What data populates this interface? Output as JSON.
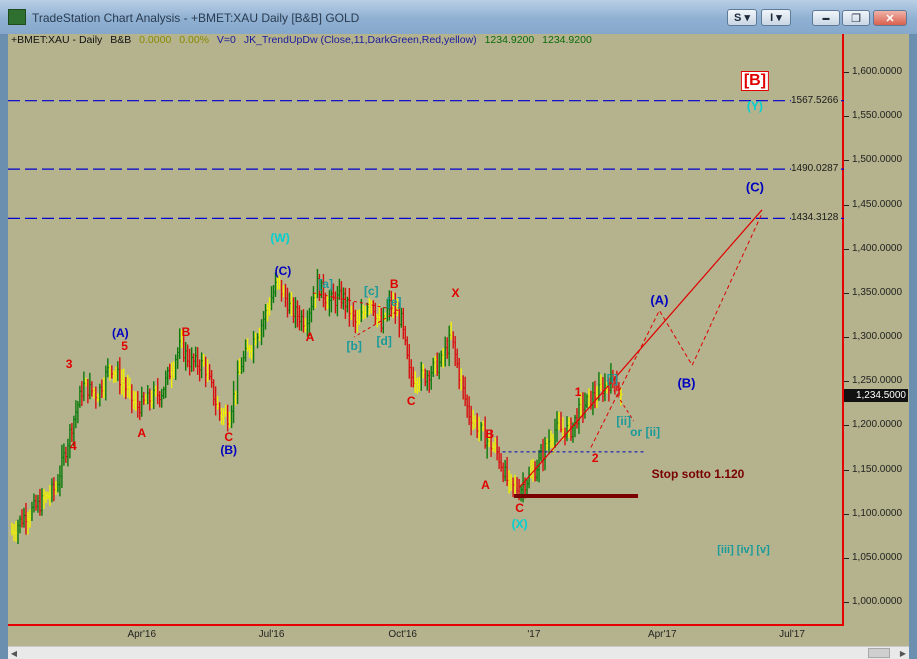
{
  "window": {
    "title": "TradeStation Chart Analysis - +BMET:XAU Daily [B&B] GOLD",
    "s_button": "S",
    "i_button": "I",
    "minimize_label": "▬",
    "restore_label": "❐",
    "close_label": "✕"
  },
  "status_line": {
    "symbol": "+BMET:XAU - Daily",
    "style": "B&B",
    "change": "0.0000",
    "change_pct": "0.00%",
    "volume": "V=0",
    "indicator": "JK_TrendUpDw (Close,11,DarkGreen,Red,yellow)",
    "value1": "1234.9200",
    "value2": "1234.9200"
  },
  "last_price": "1,234.5000",
  "levels": [
    {
      "label": "1567.5266",
      "value": 1567.5266
    },
    {
      "label": "1490.0287",
      "value": 1490.0287
    },
    {
      "label": "1434.3128",
      "value": 1434.3128
    }
  ],
  "stop_label": "Stop sotto 1.120",
  "colors": {
    "background": "#b4b38d",
    "up_bar": "#0a7a0a",
    "down_bar": "#d81010",
    "neutral_bar": "#f0f000",
    "level_line": "#0000d0",
    "stop_line": "#7a0000"
  },
  "chart_data": {
    "type": "bar",
    "x_axis_labels": [
      "Apr'16",
      "Jul'16",
      "Oct'16",
      "'17",
      "Apr'17",
      "Jul'17"
    ],
    "ylim": [
      950,
      1650
    ],
    "y_ticks": [
      "1,600.0000",
      "1,550.0000",
      "1,500.0000",
      "1,450.0000",
      "1,400.0000",
      "1,350.0000",
      "1,300.0000",
      "1,250.0000",
      "1,200.0000",
      "1,150.0000",
      "1,100.0000",
      "1,050.0000",
      "1,000.0000"
    ],
    "y_tick_values": [
      1600,
      1550,
      1500,
      1450,
      1400,
      1350,
      1300,
      1250,
      1200,
      1150,
      1100,
      1050,
      1000
    ],
    "close_path": [
      {
        "d": "2016-01-01",
        "v": 1080
      },
      {
        "d": "2016-01-10",
        "v": 1098
      },
      {
        "d": "2016-01-20",
        "v": 1110
      },
      {
        "d": "2016-02-01",
        "v": 1130
      },
      {
        "d": "2016-02-12",
        "v": 1200
      },
      {
        "d": "2016-02-20",
        "v": 1245
      },
      {
        "d": "2016-03-01",
        "v": 1235
      },
      {
        "d": "2016-03-10",
        "v": 1268
      },
      {
        "d": "2016-03-20",
        "v": 1245
      },
      {
        "d": "2016-03-28",
        "v": 1220
      },
      {
        "d": "2016-04-05",
        "v": 1228
      },
      {
        "d": "2016-04-15",
        "v": 1238
      },
      {
        "d": "2016-04-28",
        "v": 1290
      },
      {
        "d": "2016-05-05",
        "v": 1272
      },
      {
        "d": "2016-05-15",
        "v": 1268
      },
      {
        "d": "2016-05-25",
        "v": 1215
      },
      {
        "d": "2016-06-01",
        "v": 1210
      },
      {
        "d": "2016-06-10",
        "v": 1270
      },
      {
        "d": "2016-06-24",
        "v": 1315
      },
      {
        "d": "2016-07-05",
        "v": 1362
      },
      {
        "d": "2016-07-15",
        "v": 1330
      },
      {
        "d": "2016-07-25",
        "v": 1318
      },
      {
        "d": "2016-08-02",
        "v": 1360
      },
      {
        "d": "2016-08-10",
        "v": 1340
      },
      {
        "d": "2016-08-20",
        "v": 1345
      },
      {
        "d": "2016-08-30",
        "v": 1312
      },
      {
        "d": "2016-09-08",
        "v": 1345
      },
      {
        "d": "2016-09-16",
        "v": 1310
      },
      {
        "d": "2016-09-22",
        "v": 1338
      },
      {
        "d": "2016-09-30",
        "v": 1318
      },
      {
        "d": "2016-10-06",
        "v": 1255
      },
      {
        "d": "2016-10-16",
        "v": 1255
      },
      {
        "d": "2016-10-28",
        "v": 1272
      },
      {
        "d": "2016-11-04",
        "v": 1300
      },
      {
        "d": "2016-11-10",
        "v": 1255
      },
      {
        "d": "2016-11-16",
        "v": 1215
      },
      {
        "d": "2016-11-28",
        "v": 1185
      },
      {
        "d": "2016-12-06",
        "v": 1170
      },
      {
        "d": "2016-12-15",
        "v": 1130
      },
      {
        "d": "2016-12-22",
        "v": 1128
      },
      {
        "d": "2017-01-02",
        "v": 1150
      },
      {
        "d": "2017-01-15",
        "v": 1195
      },
      {
        "d": "2017-01-27",
        "v": 1195
      },
      {
        "d": "2017-02-03",
        "v": 1220
      },
      {
        "d": "2017-02-10",
        "v": 1230
      },
      {
        "d": "2017-02-27",
        "v": 1255
      },
      {
        "d": "2017-03-03",
        "v": 1232
      }
    ],
    "annotations": [
      {
        "text": "[B]",
        "d": "2017-06-05",
        "v": 1590,
        "color": "#e00000",
        "size": 16,
        "box": true
      },
      {
        "text": "(Y)",
        "d": "2017-06-05",
        "v": 1562,
        "color": "#00d0d0",
        "size": 12
      },
      {
        "text": "(C)",
        "d": "2017-06-05",
        "v": 1470,
        "color": "#0000c0",
        "size": 13
      },
      {
        "text": "(W)",
        "d": "2016-07-07",
        "v": 1412,
        "color": "#00d0d0",
        "size": 12
      },
      {
        "text": "(C)",
        "d": "2016-07-09",
        "v": 1375,
        "color": "#0000c0",
        "size": 12
      },
      {
        "text": "[a]",
        "d": "2016-08-08",
        "v": 1360,
        "color": "#1a9a9a",
        "size": 12
      },
      {
        "text": "[c]",
        "d": "2016-09-09",
        "v": 1352,
        "color": "#1a9a9a",
        "size": 12
      },
      {
        "text": "B",
        "d": "2016-09-25",
        "v": 1360,
        "color": "#e00000",
        "size": 12
      },
      {
        "text": "[e]",
        "d": "2016-09-25",
        "v": 1340,
        "color": "#1a9a9a",
        "size": 12
      },
      {
        "text": "[b]",
        "d": "2016-08-28",
        "v": 1290,
        "color": "#1a9a9a",
        "size": 12
      },
      {
        "text": "[d]",
        "d": "2016-09-18",
        "v": 1295,
        "color": "#1a9a9a",
        "size": 12
      },
      {
        "text": "A",
        "d": "2016-07-28",
        "v": 1300,
        "color": "#e00000",
        "size": 12
      },
      {
        "text": "X",
        "d": "2016-11-07",
        "v": 1350,
        "color": "#e00000",
        "size": 12
      },
      {
        "text": "C",
        "d": "2016-10-07",
        "v": 1227,
        "color": "#e00000",
        "size": 12
      },
      {
        "text": "(A)",
        "d": "2016-03-17",
        "v": 1304,
        "color": "#0000c0",
        "size": 12
      },
      {
        "text": "5",
        "d": "2016-03-20",
        "v": 1290,
        "color": "#e00000",
        "size": 12
      },
      {
        "text": "3",
        "d": "2016-02-10",
        "v": 1270,
        "color": "#e00000",
        "size": 12
      },
      {
        "text": "4",
        "d": "2016-02-13",
        "v": 1177,
        "color": "#e00000",
        "size": 12
      },
      {
        "text": "B",
        "d": "2016-05-02",
        "v": 1306,
        "color": "#e00000",
        "size": 12
      },
      {
        "text": "A",
        "d": "2016-04-01",
        "v": 1191,
        "color": "#e00000",
        "size": 12
      },
      {
        "text": "C",
        "d": "2016-06-01",
        "v": 1187,
        "color": "#e00000",
        "size": 12
      },
      {
        "text": "(B)",
        "d": "2016-06-01",
        "v": 1172,
        "color": "#0000c0",
        "size": 12
      },
      {
        "text": "B",
        "d": "2016-12-01",
        "v": 1190,
        "color": "#e00000",
        "size": 12
      },
      {
        "text": "A",
        "d": "2016-11-28",
        "v": 1132,
        "color": "#e00000",
        "size": 12
      },
      {
        "text": "C",
        "d": "2016-12-22",
        "v": 1106,
        "color": "#e00000",
        "size": 12
      },
      {
        "text": "(X)",
        "d": "2016-12-22",
        "v": 1088,
        "color": "#00d0d0",
        "size": 12
      },
      {
        "text": "1",
        "d": "2017-02-01",
        "v": 1238,
        "color": "#e00000",
        "size": 12
      },
      {
        "text": "2",
        "d": "2017-02-13",
        "v": 1163,
        "color": "#e00000",
        "size": 12
      },
      {
        "text": "[i]",
        "d": "2017-02-25",
        "v": 1252,
        "color": "#1a9a9a",
        "size": 12
      },
      {
        "text": "[ii]",
        "d": "2017-03-05",
        "v": 1205,
        "color": "#1a9a9a",
        "size": 12
      },
      {
        "text": "or [ii]",
        "d": "2017-03-20",
        "v": 1192,
        "color": "#1a9a9a",
        "size": 12
      },
      {
        "text": "(A)",
        "d": "2017-03-30",
        "v": 1342,
        "color": "#0000c0",
        "size": 13
      },
      {
        "text": "(B)",
        "d": "2017-04-18",
        "v": 1248,
        "color": "#0000c0",
        "size": 13
      },
      {
        "text": "[iii] [iv] [v]",
        "d": "2017-05-28",
        "v": 1059,
        "color": "#1a9a9a",
        "size": 11
      }
    ]
  }
}
